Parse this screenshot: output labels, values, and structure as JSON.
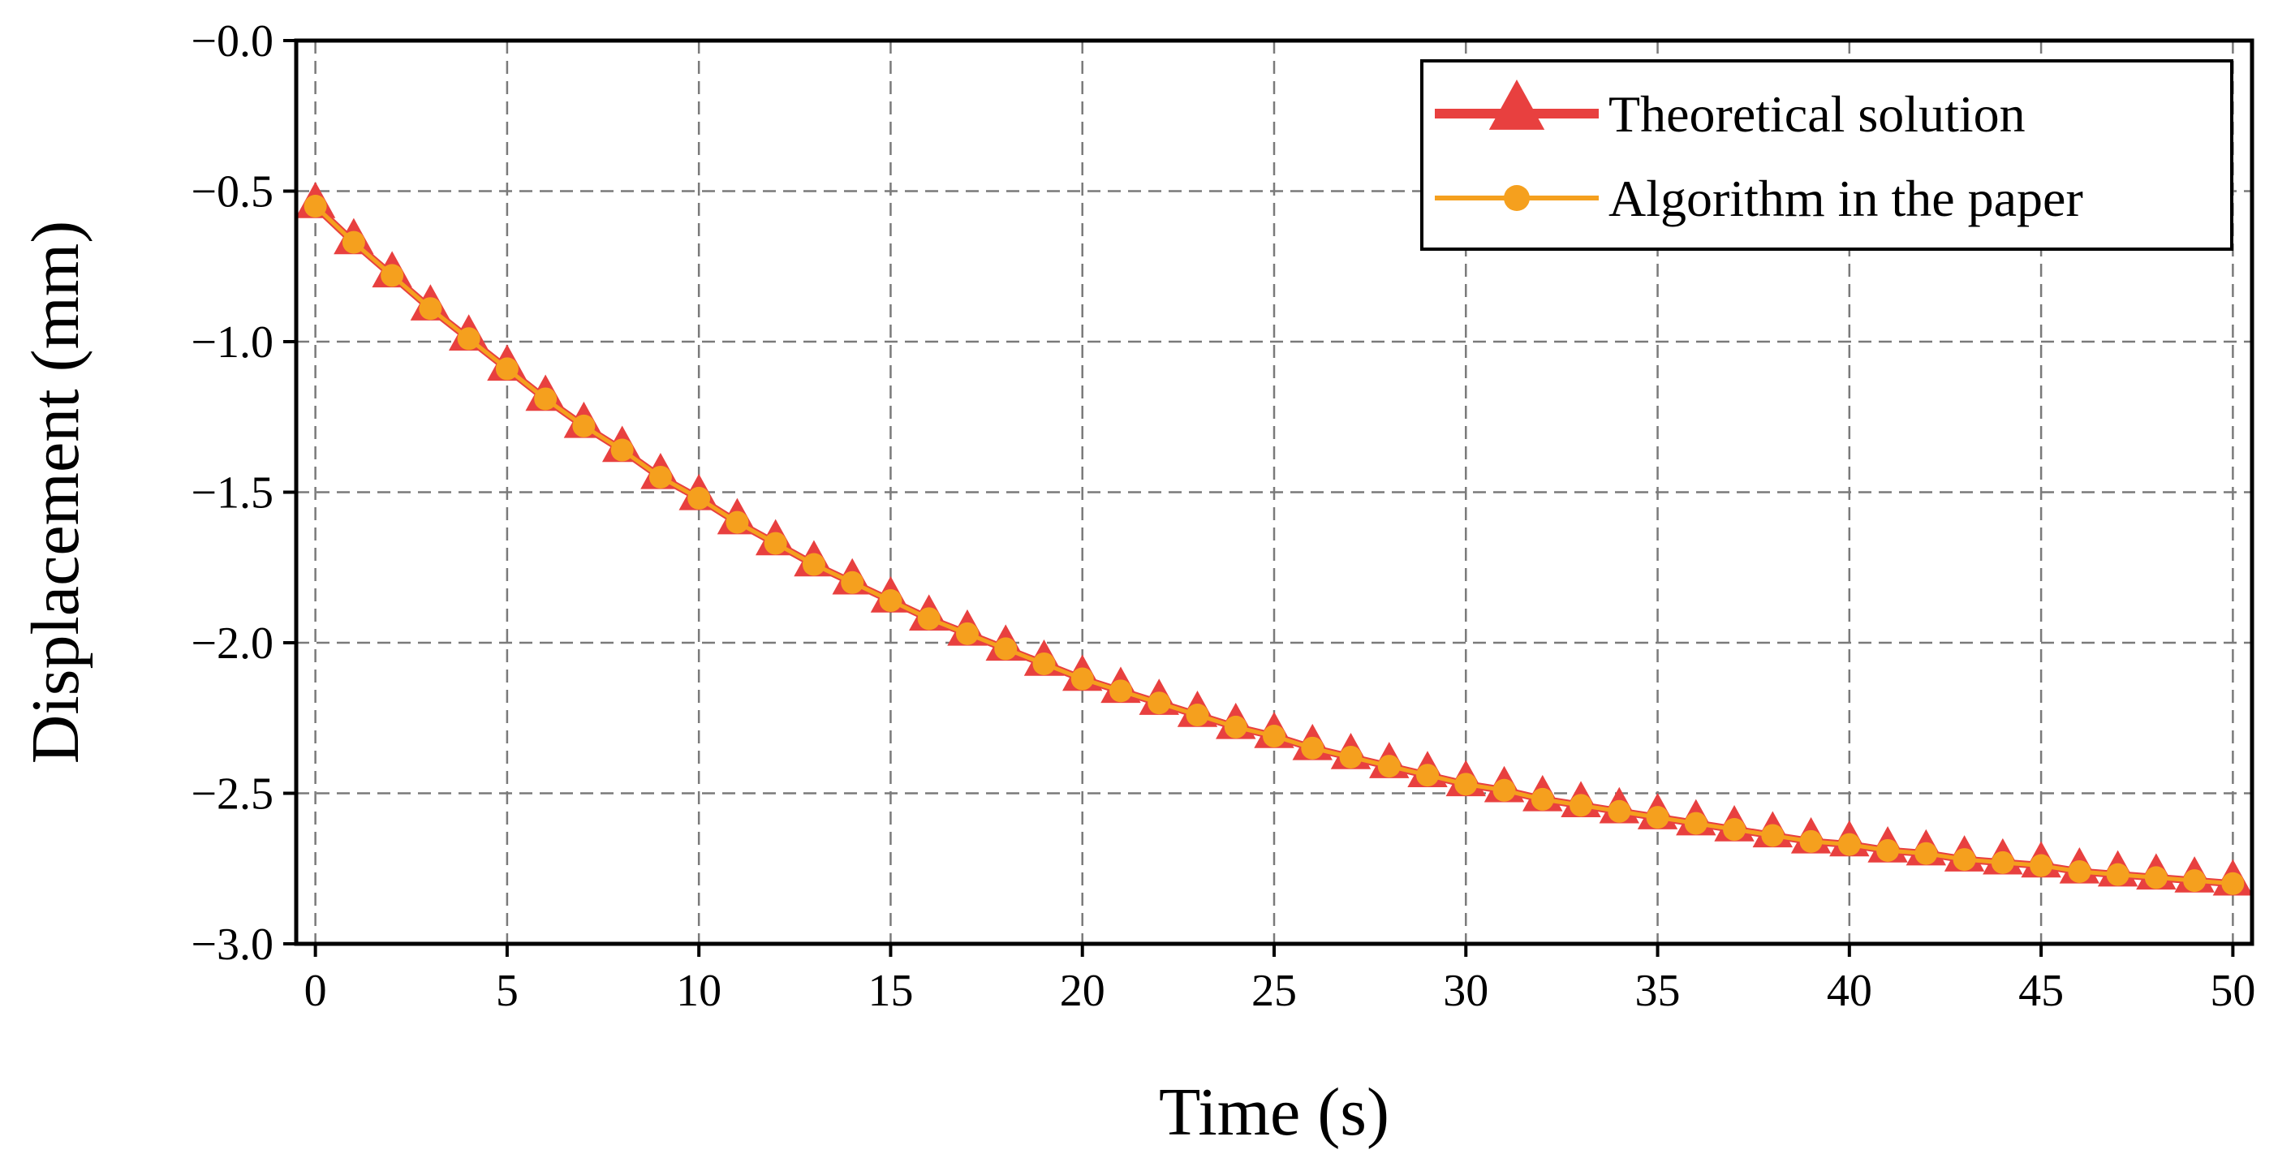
{
  "chart_data": {
    "type": "line",
    "title": "",
    "xlabel": "Time (s)",
    "ylabel": "Displacement (mm)",
    "xlim": [
      -0.5,
      50.5
    ],
    "ylim": [
      -3.0,
      0.0
    ],
    "xticks": [
      0,
      5,
      10,
      15,
      20,
      25,
      30,
      35,
      40,
      45,
      50
    ],
    "xtick_labels": [
      "0",
      "5",
      "10",
      "15",
      "20",
      "25",
      "30",
      "35",
      "40",
      "45",
      "50"
    ],
    "yticks": [
      0.0,
      -0.5,
      -1.0,
      -1.5,
      -2.0,
      -2.5,
      -3.0
    ],
    "ytick_labels": [
      "−0.0",
      "−0.5",
      "−1.0",
      "−1.5",
      "−2.0",
      "−2.5",
      "−3.0"
    ],
    "grid": true,
    "legend_position": "top-right",
    "x": [
      0,
      1,
      2,
      3,
      4,
      5,
      6,
      7,
      8,
      9,
      10,
      11,
      12,
      13,
      14,
      15,
      16,
      17,
      18,
      19,
      20,
      21,
      22,
      23,
      24,
      25,
      26,
      27,
      28,
      29,
      30,
      31,
      32,
      33,
      34,
      35,
      36,
      37,
      38,
      39,
      40,
      41,
      42,
      43,
      44,
      45,
      46,
      47,
      48,
      49,
      50
    ],
    "series": [
      {
        "name": "Theoretical solution",
        "color": "#e8403f",
        "marker": "triangle",
        "values": [
          -0.55,
          -0.67,
          -0.78,
          -0.89,
          -0.99,
          -1.09,
          -1.19,
          -1.28,
          -1.36,
          -1.45,
          -1.52,
          -1.6,
          -1.67,
          -1.74,
          -1.8,
          -1.86,
          -1.92,
          -1.97,
          -2.02,
          -2.07,
          -2.12,
          -2.16,
          -2.2,
          -2.24,
          -2.28,
          -2.31,
          -2.35,
          -2.38,
          -2.41,
          -2.44,
          -2.47,
          -2.49,
          -2.52,
          -2.54,
          -2.56,
          -2.58,
          -2.6,
          -2.62,
          -2.64,
          -2.66,
          -2.67,
          -2.69,
          -2.7,
          -2.72,
          -2.73,
          -2.74,
          -2.76,
          -2.77,
          -2.78,
          -2.79,
          -2.8
        ]
      },
      {
        "name": "Algorithm in the paper",
        "color": "#f5a01e",
        "marker": "circle",
        "values": [
          -0.55,
          -0.67,
          -0.78,
          -0.89,
          -0.99,
          -1.09,
          -1.19,
          -1.28,
          -1.36,
          -1.45,
          -1.52,
          -1.6,
          -1.67,
          -1.74,
          -1.8,
          -1.86,
          -1.92,
          -1.97,
          -2.02,
          -2.07,
          -2.12,
          -2.16,
          -2.2,
          -2.24,
          -2.28,
          -2.31,
          -2.35,
          -2.38,
          -2.41,
          -2.44,
          -2.47,
          -2.49,
          -2.52,
          -2.54,
          -2.56,
          -2.58,
          -2.6,
          -2.62,
          -2.64,
          -2.66,
          -2.67,
          -2.69,
          -2.7,
          -2.72,
          -2.73,
          -2.74,
          -2.76,
          -2.77,
          -2.78,
          -2.79,
          -2.8
        ]
      }
    ]
  }
}
